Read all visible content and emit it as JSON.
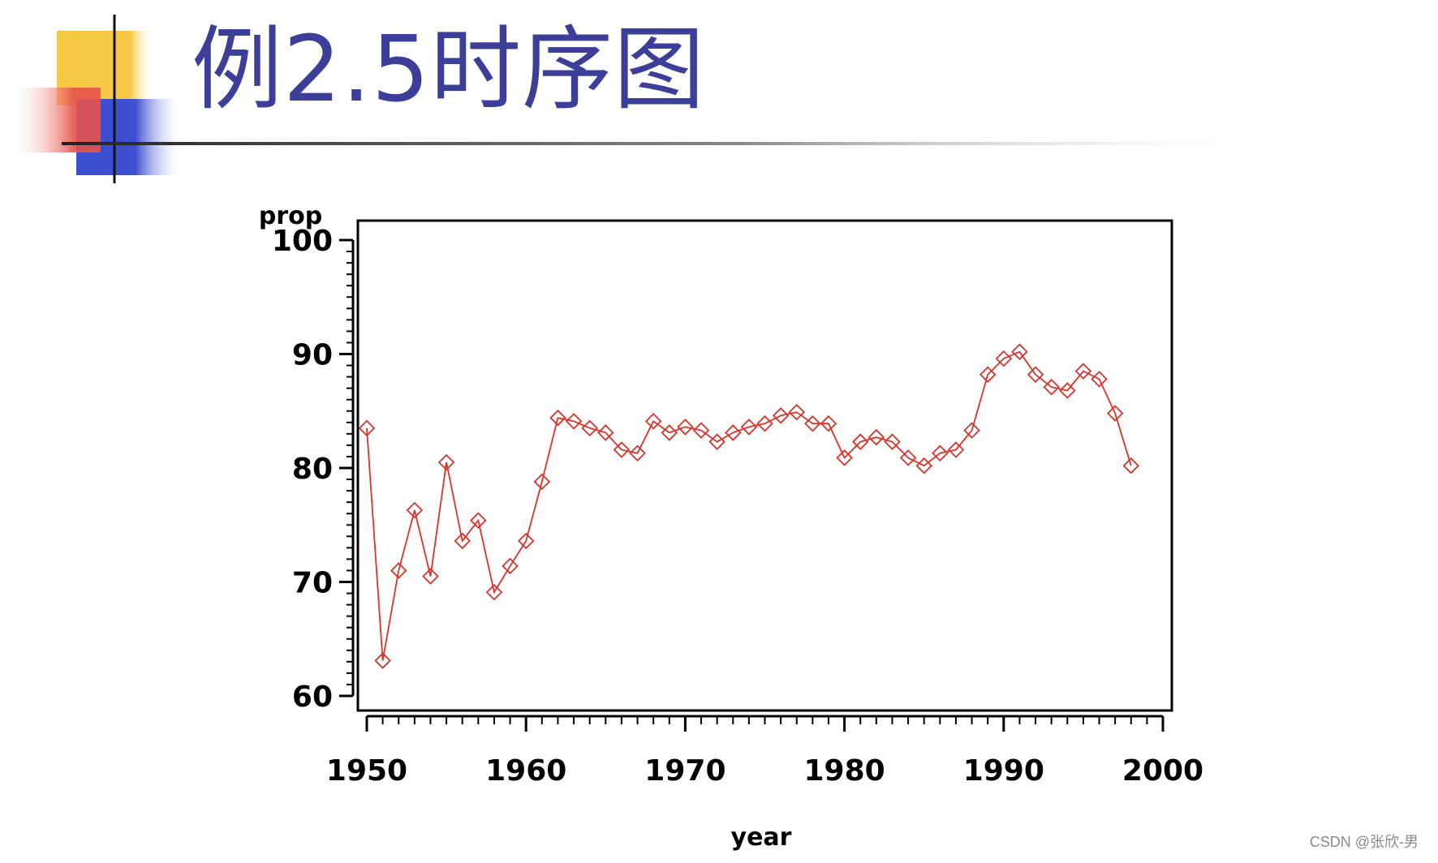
{
  "slide": {
    "title": "例2.5时序图",
    "watermark": "CSDN @张欣-男"
  },
  "colors": {
    "title_text": "#3b3f9a",
    "series_line": "#d9342b",
    "logo_yellow": "#f6c843",
    "logo_red": "#e8524a",
    "logo_blue": "#3d4fd1",
    "axis": "#000000"
  },
  "chart_data": {
    "type": "line",
    "title": "",
    "xlabel": "year",
    "ylabel": "prop",
    "xlim": [
      1950,
      2000
    ],
    "ylim": [
      60,
      100
    ],
    "xticks": [
      1950,
      1960,
      1970,
      1980,
      1990,
      2000
    ],
    "yticks": [
      60,
      70,
      80,
      90,
      100
    ],
    "grid": false,
    "marker": "diamond",
    "series": [
      {
        "x": [
          1950,
          1951,
          1952,
          1953,
          1954,
          1955,
          1956,
          1957,
          1958,
          1959,
          1960,
          1961,
          1962,
          1963,
          1964,
          1965,
          1966,
          1967,
          1968,
          1969,
          1970,
          1971,
          1972,
          1973,
          1974,
          1975,
          1976,
          1977,
          1978,
          1979,
          1980,
          1981,
          1982,
          1983,
          1984,
          1985,
          1986,
          1987,
          1988,
          1989,
          1990,
          1991,
          1992,
          1993,
          1994,
          1995,
          1996,
          1997,
          1998
        ],
        "values": [
          83.5,
          63.1,
          71.0,
          76.3,
          70.5,
          80.5,
          73.6,
          75.4,
          69.1,
          71.4,
          73.6,
          78.8,
          84.4,
          84.1,
          83.5,
          83.1,
          81.6,
          81.3,
          84.1,
          83.1,
          83.6,
          83.3,
          82.3,
          83.1,
          83.6,
          83.9,
          84.6,
          84.9,
          83.9,
          83.9,
          80.9,
          82.3,
          82.7,
          82.3,
          80.9,
          80.2,
          81.3,
          81.6,
          83.3,
          88.2,
          89.6,
          90.2,
          88.2,
          87.1,
          86.8,
          88.5,
          87.8,
          84.8,
          80.2
        ]
      }
    ]
  }
}
